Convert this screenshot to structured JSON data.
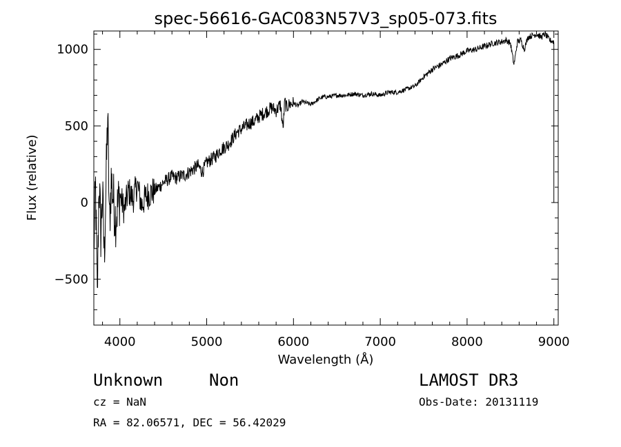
{
  "chart_data": {
    "type": "line",
    "title": "spec-56616-GAC083N57V3_sp05-073.fits",
    "xlabel": "Wavelength (Å)",
    "ylabel": "Flux (relative)",
    "xlim": [
      3700,
      9050
    ],
    "ylim": [
      -800,
      1120
    ],
    "x_ticks": [
      4000,
      5000,
      6000,
      7000,
      8000,
      9000
    ],
    "x_tick_labels": [
      "4000",
      "5000",
      "6000",
      "7000",
      "8000",
      "9000"
    ],
    "y_ticks": [
      -500,
      0,
      500,
      1000
    ],
    "y_tick_labels": [
      "−500",
      "0",
      "500",
      "1000"
    ],
    "grid": false,
    "series": [
      {
        "name": "flux",
        "x": [
          3700,
          3720,
          3740,
          3760,
          3780,
          3800,
          3820,
          3840,
          3860,
          3880,
          3900,
          3950,
          4000,
          4050,
          4100,
          4150,
          4200,
          4250,
          4300,
          4350,
          4400,
          4450,
          4500,
          4550,
          4600,
          4650,
          4700,
          4750,
          4800,
          4850,
          4900,
          4950,
          5000,
          5050,
          5100,
          5150,
          5200,
          5250,
          5300,
          5350,
          5400,
          5450,
          5500,
          5550,
          5600,
          5650,
          5700,
          5750,
          5800,
          5850,
          5880,
          5900,
          5920,
          5950,
          6000,
          6050,
          6100,
          6150,
          6200,
          6250,
          6300,
          6350,
          6400,
          6500,
          6600,
          6700,
          6800,
          6900,
          7000,
          7100,
          7200,
          7300,
          7400,
          7500,
          7600,
          7700,
          7800,
          7900,
          8000,
          8100,
          8200,
          8300,
          8400,
          8450,
          8500,
          8540,
          8580,
          8620,
          8660,
          8700,
          8750,
          8800,
          8850,
          8900,
          8950,
          9000
        ],
        "y": [
          -300,
          100,
          -650,
          150,
          -200,
          50,
          -350,
          100,
          580,
          -150,
          150,
          -100,
          50,
          -50,
          80,
          20,
          120,
          -20,
          40,
          60,
          80,
          100,
          130,
          150,
          170,
          160,
          175,
          180,
          200,
          220,
          240,
          200,
          260,
          280,
          300,
          340,
          360,
          380,
          420,
          460,
          480,
          500,
          520,
          530,
          560,
          580,
          600,
          620,
          600,
          640,
          480,
          660,
          620,
          640,
          650,
          630,
          660,
          650,
          640,
          660,
          680,
          690,
          690,
          700,
          700,
          710,
          700,
          710,
          700,
          720,
          720,
          740,
          760,
          820,
          870,
          900,
          940,
          960,
          990,
          1000,
          1020,
          1040,
          1050,
          1060,
          1040,
          900,
          1050,
          1060,
          1000,
          1080,
          1090,
          1100,
          1080,
          1100,
          1060,
          1050
        ]
      }
    ]
  },
  "footer": {
    "object_class": "Unknown",
    "object_subclass": "Non",
    "survey": "LAMOST DR3",
    "redshift": "cz = NaN",
    "obs_date": "Obs-Date: 20131119",
    "coords": "RA =  82.06571, DEC =  56.42029"
  }
}
